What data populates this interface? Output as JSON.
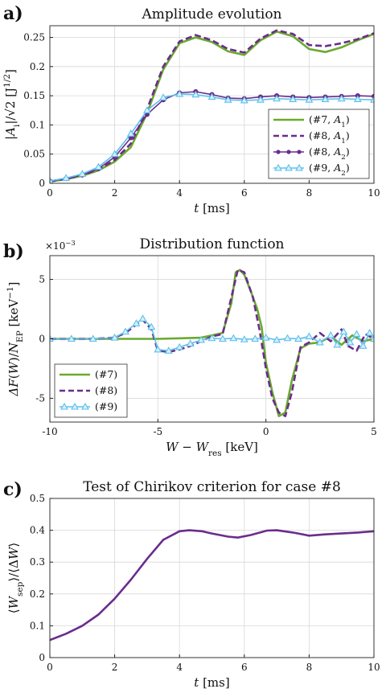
{
  "colors": {
    "green": "#6aaa2e",
    "purple": "#6a2d8c",
    "cyan": "#5bc0eb",
    "grid": "#d8d8d8"
  },
  "panels": [
    {
      "label": "a)",
      "chart_data": {
        "type": "line",
        "title": "Amplitude evolution",
        "xlabel": "t [ms]",
        "ylabel": "|A_i|/√2 [J^1/2]",
        "xlim": [
          0,
          10
        ],
        "ylim": [
          0,
          0.27
        ],
        "xticks": [
          "0",
          "2",
          "4",
          "6",
          "8",
          "10"
        ],
        "yticks": [
          "0",
          "0.05",
          "0.1",
          "0.15",
          "0.2",
          "0.25"
        ],
        "grid": true,
        "legend_position": "bottom-right",
        "series": [
          {
            "name": "(#7, A1)",
            "color": "#6aaa2e",
            "style": "solid",
            "marker": "none",
            "x": [
              0,
              0.5,
              1,
              1.5,
              2,
              2.5,
              3,
              3.5,
              4,
              4.5,
              5,
              5.5,
              6,
              6.5,
              7,
              7.5,
              8,
              8.5,
              9,
              9.5,
              10
            ],
            "y": [
              0.003,
              0.007,
              0.013,
              0.022,
              0.037,
              0.062,
              0.12,
              0.195,
              0.24,
              0.25,
              0.242,
              0.226,
              0.22,
              0.245,
              0.26,
              0.252,
              0.23,
              0.225,
              0.233,
              0.245,
              0.256
            ]
          },
          {
            "name": "(#8, A1)",
            "color": "#6a2d8c",
            "style": "dashed",
            "marker": "none",
            "x": [
              0,
              0.5,
              1,
              1.5,
              2,
              2.5,
              3,
              3.5,
              4,
              4.5,
              5,
              5.5,
              6,
              6.5,
              7,
              7.5,
              8,
              8.5,
              9,
              9.5,
              10
            ],
            "y": [
              0.003,
              0.008,
              0.014,
              0.024,
              0.04,
              0.068,
              0.127,
              0.2,
              0.243,
              0.254,
              0.245,
              0.23,
              0.224,
              0.248,
              0.262,
              0.256,
              0.237,
              0.235,
              0.24,
              0.247,
              0.257
            ]
          },
          {
            "name": "(#8, A2)",
            "color": "#6a2d8c",
            "style": "solid",
            "marker": "circle",
            "x": [
              0,
              0.5,
              1,
              1.5,
              2,
              2.5,
              3,
              3.5,
              4,
              4.5,
              5,
              5.5,
              6,
              6.5,
              7,
              7.5,
              8,
              8.5,
              9,
              9.5,
              10
            ],
            "y": [
              0.004,
              0.008,
              0.014,
              0.025,
              0.045,
              0.078,
              0.118,
              0.143,
              0.155,
              0.157,
              0.152,
              0.146,
              0.145,
              0.148,
              0.15,
              0.148,
              0.147,
              0.148,
              0.149,
              0.15,
              0.149
            ]
          },
          {
            "name": "(#9, A2)",
            "color": "#5bc0eb",
            "style": "solid",
            "marker": "triangle",
            "x": [
              0,
              0.5,
              1,
              1.5,
              2,
              2.5,
              3,
              3.5,
              4,
              4.5,
              5,
              5.5,
              6,
              6.5,
              7,
              7.5,
              8,
              8.5,
              9,
              9.5,
              10
            ],
            "y": [
              0.004,
              0.009,
              0.016,
              0.028,
              0.05,
              0.085,
              0.125,
              0.147,
              0.153,
              0.152,
              0.148,
              0.143,
              0.142,
              0.143,
              0.145,
              0.144,
              0.143,
              0.144,
              0.145,
              0.144,
              0.143
            ]
          }
        ]
      }
    },
    {
      "label": "b)",
      "chart_data": {
        "type": "line",
        "title": "Distribution function",
        "xlabel": "W − W_res [keV]",
        "ylabel": "ΔF(W)/N_EP [keV^−1]",
        "y_multiplier": "×10^−3",
        "xlim": [
          -10,
          5
        ],
        "ylim": [
          -7,
          7
        ],
        "xticks": [
          "-10",
          "-5",
          "0",
          "5"
        ],
        "yticks": [
          "-5",
          "0",
          "5"
        ],
        "grid": true,
        "legend_position": "bottom-left",
        "series": [
          {
            "name": "(#7)",
            "color": "#6aaa2e",
            "style": "solid",
            "marker": "none",
            "x": [
              -10,
              -8,
              -6,
              -5,
              -4,
              -3,
              -2.5,
              -2,
              -1.6,
              -1.4,
              -1.2,
              -1,
              -0.7,
              -0.4,
              -0.2,
              0,
              0.3,
              0.6,
              0.9,
              1.2,
              1.6,
              2,
              2.5,
              3,
              3.5,
              4,
              4.5,
              5
            ],
            "y": [
              0,
              0,
              0,
              0,
              0.05,
              0.1,
              0.3,
              0.5,
              3,
              5.6,
              5.8,
              5.4,
              4,
              2.5,
              1,
              -2,
              -4.5,
              -6.5,
              -6.2,
              -3.5,
              -0.8,
              -0.4,
              -0.3,
              0.2,
              -0.5,
              0.3,
              -0.2,
              0
            ]
          },
          {
            "name": "(#8)",
            "color": "#6a2d8c",
            "style": "dashed",
            "marker": "none",
            "x": [
              -10,
              -8,
              -7,
              -6.5,
              -6,
              -5.7,
              -5.3,
              -5,
              -4.5,
              -4,
              -3.5,
              -3,
              -2.5,
              -2,
              -1.6,
              -1.3,
              -1,
              -0.6,
              -0.3,
              0,
              0.3,
              0.6,
              0.9,
              1.2,
              1.6,
              2,
              2.5,
              3,
              3.5,
              3.8,
              4.2,
              4.6,
              5
            ],
            "y": [
              0,
              0,
              0.1,
              0.5,
              1.2,
              1.6,
              0.8,
              -1.0,
              -1.1,
              -0.9,
              -0.6,
              -0.2,
              0.2,
              0.4,
              3.5,
              5.8,
              5.6,
              3.5,
              0.8,
              -2.5,
              -5,
              -6.2,
              -6.5,
              -4.5,
              -0.7,
              -0.3,
              0.5,
              -0.2,
              0.8,
              -0.6,
              -1.0,
              0.4,
              0
            ]
          },
          {
            "name": "(#9)",
            "color": "#5bc0eb",
            "style": "solid",
            "marker": "triangle",
            "x": [
              -10,
              -9,
              -8,
              -7,
              -6.5,
              -6,
              -5.7,
              -5.3,
              -5,
              -4.5,
              -4,
              -3.5,
              -3,
              -2.5,
              -2,
              -1.5,
              -1,
              -0.5,
              0,
              0.5,
              1,
              1.5,
              2,
              2.5,
              3,
              3.3,
              3.6,
              3.9,
              4.2,
              4.5,
              4.8,
              5
            ],
            "y": [
              0,
              0,
              0,
              0.1,
              0.6,
              1.3,
              1.7,
              1.0,
              -0.9,
              -1.0,
              -0.7,
              -0.4,
              -0.1,
              0.05,
              0,
              0.05,
              -0.05,
              0,
              0.1,
              -0.1,
              0.05,
              0,
              0.2,
              -0.3,
              0.3,
              -0.5,
              0.6,
              -0.3,
              0.4,
              -0.6,
              0.5,
              0
            ]
          }
        ]
      }
    },
    {
      "label": "c)",
      "chart_data": {
        "type": "line",
        "title": "Test of Chirikov criterion for case #8",
        "xlabel": "t [ms]",
        "ylabel": "⟨W_sep⟩/⟨ΔW⟩",
        "xlim": [
          0,
          10
        ],
        "ylim": [
          0,
          0.5
        ],
        "xticks": [
          "0",
          "2",
          "4",
          "6",
          "8",
          "10"
        ],
        "yticks": [
          "0",
          "0.1",
          "0.2",
          "0.3",
          "0.4",
          "0.5"
        ],
        "grid": true,
        "series": [
          {
            "color": "#6a2d8c",
            "style": "solid",
            "marker": "none",
            "x": [
              0,
              0.5,
              1,
              1.5,
              2,
              2.5,
              3,
              3.5,
              4,
              4.3,
              4.7,
              5,
              5.5,
              5.8,
              6.2,
              6.7,
              7,
              7.5,
              8,
              8.5,
              9,
              9.5,
              10
            ],
            "y": [
              0.055,
              0.075,
              0.1,
              0.135,
              0.185,
              0.245,
              0.31,
              0.37,
              0.397,
              0.4,
              0.397,
              0.39,
              0.38,
              0.377,
              0.385,
              0.399,
              0.4,
              0.393,
              0.383,
              0.387,
              0.39,
              0.393,
              0.397
            ]
          }
        ]
      }
    }
  ]
}
